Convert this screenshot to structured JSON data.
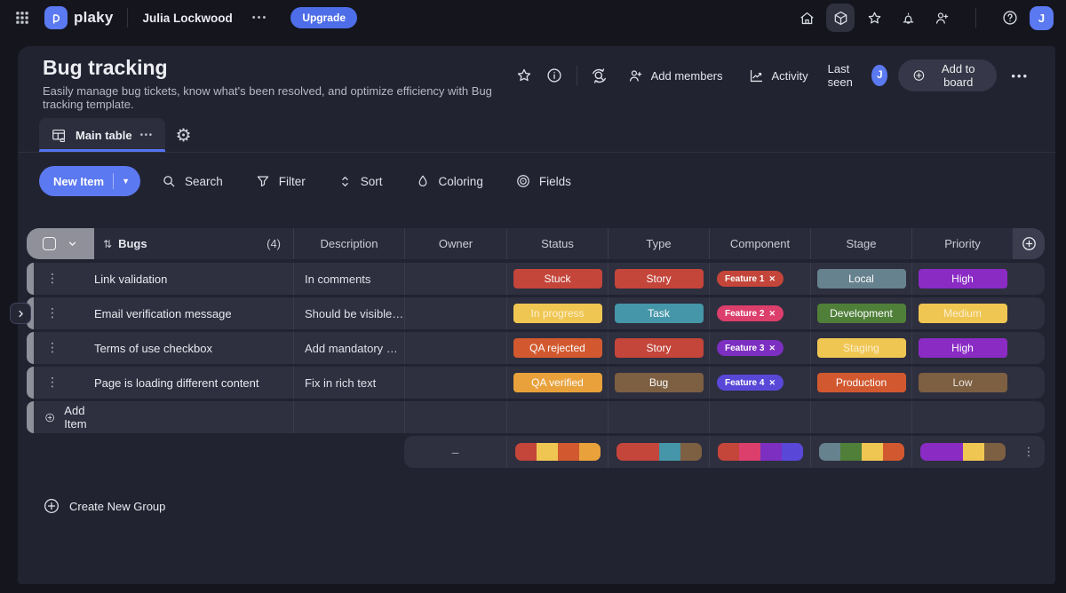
{
  "topbar": {
    "brand": "plaky",
    "user_name": "Julia Lockwood",
    "more_label": "•••",
    "upgrade_label": "Upgrade",
    "avatar_initial": "J"
  },
  "board": {
    "title": "Bug tracking",
    "subtitle": "Easily manage bug tickets, know what's been resolved, and optimize efficiency with Bug tracking template.",
    "add_members_label": "Add members",
    "activity_label": "Activity",
    "last_seen_label": "Last seen",
    "last_seen_avatar_initial": "J",
    "add_to_board_label": "Add to board",
    "more_label": "•••"
  },
  "tabs": {
    "main_tab_label": "Main table",
    "tab_more_label": "•••"
  },
  "toolbar": {
    "new_item_label": "New Item",
    "search_label": "Search",
    "filter_label": "Filter",
    "sort_label": "Sort",
    "coloring_label": "Coloring",
    "fields_label": "Fields"
  },
  "table": {
    "group_name": "Bugs",
    "item_count": "(4)",
    "columns": [
      "Description",
      "Owner",
      "Status",
      "Type",
      "Component",
      "Stage",
      "Priority"
    ],
    "rows": [
      {
        "name": "Link validation",
        "description": "In comments",
        "status": {
          "label": "Stuck",
          "color": "#c4453a"
        },
        "type": {
          "label": "Story",
          "color": "#c4453a"
        },
        "component": {
          "label": "Feature 1",
          "color": "#c4453a"
        },
        "stage": {
          "label": "Local",
          "color": "#67828f"
        },
        "priority": {
          "label": "High",
          "color": "#8a2bc4"
        }
      },
      {
        "name": "Email verification message",
        "description": "Should be visible…",
        "status": {
          "label": "In progress",
          "color": "#f0c653",
          "text": "rgba(255,255,255,0.72)"
        },
        "type": {
          "label": "Task",
          "color": "#4596a8"
        },
        "component": {
          "label": "Feature 2",
          "color": "#dc3f6c"
        },
        "stage": {
          "label": "Development",
          "color": "#4f7f39"
        },
        "priority": {
          "label": "Medium",
          "color": "#f0c653",
          "text": "rgba(255,255,255,0.72)"
        }
      },
      {
        "name": "Terms of use checkbox",
        "description": "Add mandatory …",
        "status": {
          "label": "QA rejected",
          "color": "#d2592f"
        },
        "type": {
          "label": "Story",
          "color": "#c4453a"
        },
        "component": {
          "label": "Feature 3",
          "color": "#7c2fc0"
        },
        "stage": {
          "label": "Staging",
          "color": "#f0c653",
          "text": "rgba(255,255,255,0.72)"
        },
        "priority": {
          "label": "High",
          "color": "#8a2bc4"
        }
      },
      {
        "name": "Page is loading different content",
        "description": "Fix in rich text",
        "status": {
          "label": "QA verified",
          "color": "#e9a23b"
        },
        "type": {
          "label": "Bug",
          "color": "#7d5f41"
        },
        "component": {
          "label": "Feature 4",
          "color": "#5948d8"
        },
        "stage": {
          "label": "Production",
          "color": "#d2592f"
        },
        "priority": {
          "label": "Low",
          "color": "#7d5f41",
          "text": "rgba(255,255,255,0.82)"
        }
      }
    ],
    "component_remove_glyph": "✕",
    "add_item_label": "Add Item",
    "summary": {
      "owner_value": "–",
      "menu_glyph": "⋮",
      "bars": {
        "status": [
          {
            "color": "#c4453a",
            "w": 1
          },
          {
            "color": "#f0c653",
            "w": 1
          },
          {
            "color": "#d2592f",
            "w": 1
          },
          {
            "color": "#e9a23b",
            "w": 1
          }
        ],
        "type": [
          {
            "color": "#c4453a",
            "w": 2
          },
          {
            "color": "#4596a8",
            "w": 1
          },
          {
            "color": "#7d5f41",
            "w": 1
          }
        ],
        "component": [
          {
            "color": "#c4453a",
            "w": 1
          },
          {
            "color": "#dc3f6c",
            "w": 1
          },
          {
            "color": "#7c2fc0",
            "w": 1
          },
          {
            "color": "#5948d8",
            "w": 1
          }
        ],
        "stage": [
          {
            "color": "#67828f",
            "w": 1
          },
          {
            "color": "#4f7f39",
            "w": 1
          },
          {
            "color": "#f0c653",
            "w": 1
          },
          {
            "color": "#d2592f",
            "w": 1
          }
        ],
        "priority": [
          {
            "color": "#8a2bc4",
            "w": 2
          },
          {
            "color": "#f0c653",
            "w": 1
          },
          {
            "color": "#7d5f41",
            "w": 1
          }
        ]
      }
    }
  },
  "footer": {
    "create_group_label": "Create New Group"
  },
  "colors": {
    "accent_blue": "#5b79f1",
    "upgrade_blue": "#4d6ee8",
    "panel_bg": "#222331",
    "row_bg": "#2e2f3f"
  }
}
